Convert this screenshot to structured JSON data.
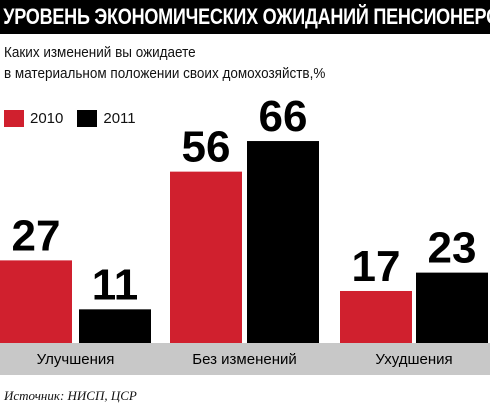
{
  "title": "УРОВЕНЬ ЭКОНОМИЧЕСКИХ ОЖИДАНИЙ ПЕНСИОНЕРОВ",
  "subtitle_lines": [
    "Каких изменений вы ожидаете",
    "в материальном положении своих домохозяйств,%"
  ],
  "source": "Источник: НИСП, ЦСР",
  "colors": {
    "2010": "#d0202e",
    "2011": "#000000",
    "axis_band": "#c8c8c8"
  },
  "chart_data": {
    "type": "bar",
    "categories": [
      "Улучшения",
      "Без изменений",
      "Ухудшения"
    ],
    "series": [
      {
        "name": "2010",
        "values": [
          27,
          56,
          17
        ]
      },
      {
        "name": "2011",
        "values": [
          11,
          66,
          23
        ]
      }
    ],
    "ylim": [
      0,
      70
    ],
    "grid": false,
    "legend_position": "top-left"
  }
}
